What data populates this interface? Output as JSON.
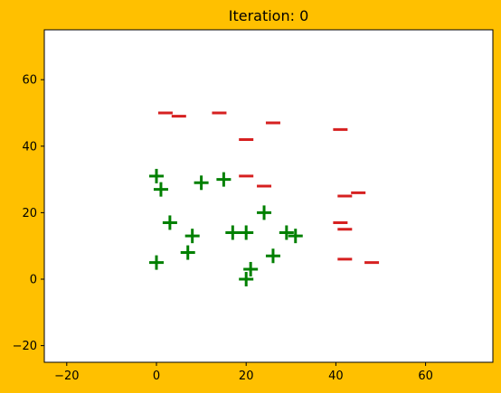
{
  "chart_data": {
    "type": "scatter",
    "title": "Iteration: 0",
    "xlabel": "",
    "ylabel": "",
    "xlim": [
      -25,
      75
    ],
    "ylim": [
      -25,
      75
    ],
    "xticks": [
      -20,
      0,
      20,
      40,
      60
    ],
    "yticks": [
      -20,
      0,
      20,
      40,
      60
    ],
    "grid": false,
    "background_color": "#ffc000",
    "plot_area_color": "#ffffff",
    "series": [
      {
        "marker": "plus",
        "color": "#008000",
        "points": [
          [
            0,
            31
          ],
          [
            1,
            27
          ],
          [
            0,
            5
          ],
          [
            3,
            17
          ],
          [
            7,
            8
          ],
          [
            8,
            13
          ],
          [
            10,
            29
          ],
          [
            15,
            30
          ],
          [
            17,
            14
          ],
          [
            20,
            14
          ],
          [
            21,
            3
          ],
          [
            20,
            0
          ],
          [
            24,
            20
          ],
          [
            26,
            7
          ],
          [
            29,
            14
          ],
          [
            31,
            13
          ]
        ]
      },
      {
        "marker": "minus",
        "color": "#d62020",
        "points": [
          [
            2,
            50
          ],
          [
            5,
            49
          ],
          [
            14,
            50
          ],
          [
            26,
            47
          ],
          [
            20,
            42
          ],
          [
            41,
            45
          ],
          [
            20,
            31
          ],
          [
            24,
            28
          ],
          [
            42,
            25
          ],
          [
            45,
            26
          ],
          [
            41,
            17
          ],
          [
            42,
            15
          ],
          [
            42,
            6
          ],
          [
            48,
            5
          ]
        ]
      }
    ]
  }
}
